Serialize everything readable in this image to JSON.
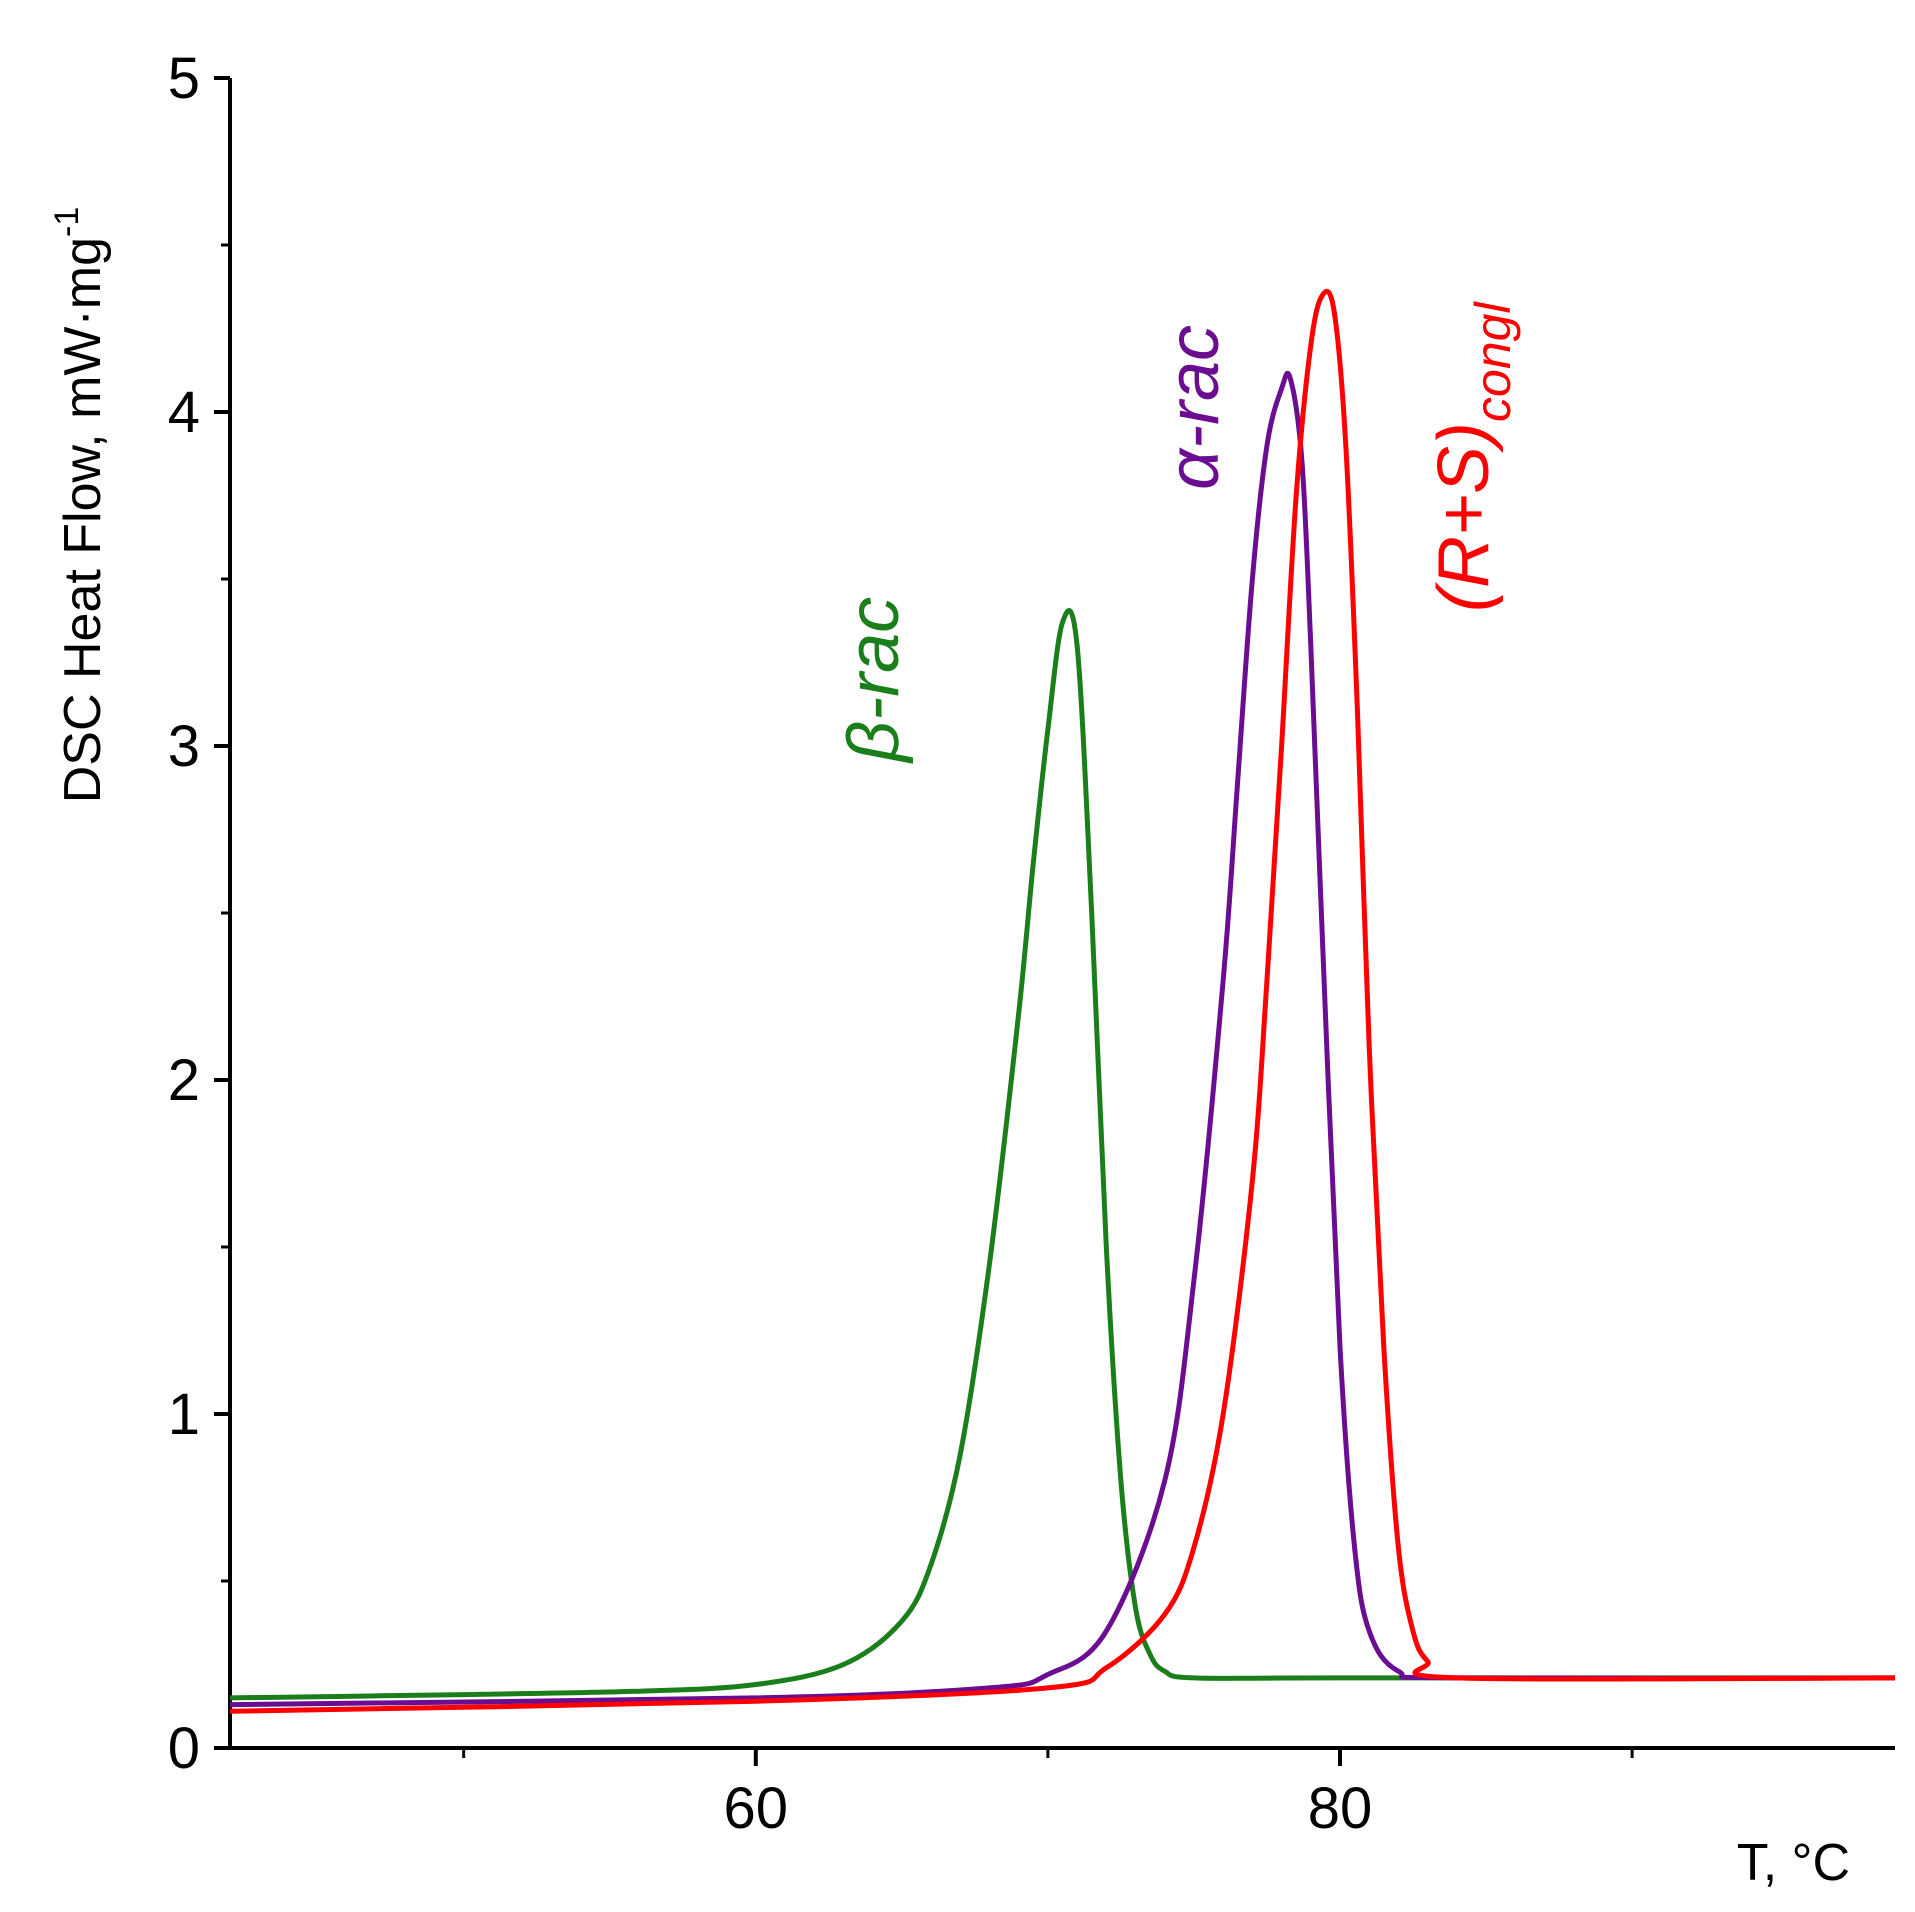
{
  "chart_data": {
    "type": "line",
    "title": "",
    "xlabel": "T, °C",
    "ylabel": "DSC Heat Flow, mW·mg",
    "ylabel_sup": "-1",
    "xlim": [
      42,
      99
    ],
    "ylim": [
      0,
      5
    ],
    "x_major_ticks": [
      60,
      80
    ],
    "x_minor_ticks": [
      50,
      70,
      90
    ],
    "y_major_ticks": [
      0,
      1,
      2,
      3,
      4,
      5
    ],
    "y_minor_ticks": [
      0.5,
      1.5,
      2.5,
      3.5,
      4.5
    ],
    "grid": false,
    "legend": "none",
    "series": [
      {
        "name": "β-rac",
        "label_main": "β-rac",
        "color": "#1a7f1a",
        "x": [
          42,
          50,
          56,
          60,
          63,
          65,
          66,
          67,
          68,
          69,
          69.5,
          70,
          70.5,
          71,
          71.5,
          72,
          72.5,
          73,
          73.5,
          74,
          75,
          80,
          99
        ],
        "y": [
          0.15,
          0.16,
          0.17,
          0.19,
          0.25,
          0.38,
          0.55,
          0.88,
          1.45,
          2.2,
          2.65,
          3.05,
          3.37,
          3.3,
          2.5,
          1.5,
          0.8,
          0.42,
          0.28,
          0.23,
          0.21,
          0.21,
          0.21
        ]
      },
      {
        "name": "α-rac",
        "label_main": "α-rac",
        "color": "#6a0d91",
        "x": [
          42,
          60,
          68,
          70,
          72,
          74,
          75,
          76,
          76.5,
          77,
          77.5,
          78,
          78.3,
          78.7,
          79,
          79.5,
          80,
          80.5,
          81,
          82,
          84,
          99
        ],
        "y": [
          0.13,
          0.15,
          0.18,
          0.22,
          0.35,
          0.8,
          1.4,
          2.3,
          2.9,
          3.5,
          3.9,
          4.07,
          4.1,
          3.85,
          3.3,
          2.2,
          1.2,
          0.6,
          0.35,
          0.23,
          0.21,
          0.21
        ]
      },
      {
        "name": "(R+S)congl",
        "label_main": "(R+S)",
        "label_sub": "congl",
        "color": "#ff0000",
        "x": [
          42,
          60,
          70,
          72,
          74,
          75,
          76,
          77,
          77.5,
          78,
          78.5,
          79,
          79.4,
          79.8,
          80.2,
          80.6,
          81,
          81.5,
          82,
          82.5,
          83,
          84,
          99
        ],
        "y": [
          0.11,
          0.14,
          0.18,
          0.24,
          0.4,
          0.6,
          1.0,
          1.7,
          2.3,
          3.0,
          3.75,
          4.2,
          4.35,
          4.3,
          3.9,
          3.1,
          2.1,
          1.2,
          0.6,
          0.35,
          0.26,
          0.21,
          0.21
        ]
      }
    ]
  }
}
